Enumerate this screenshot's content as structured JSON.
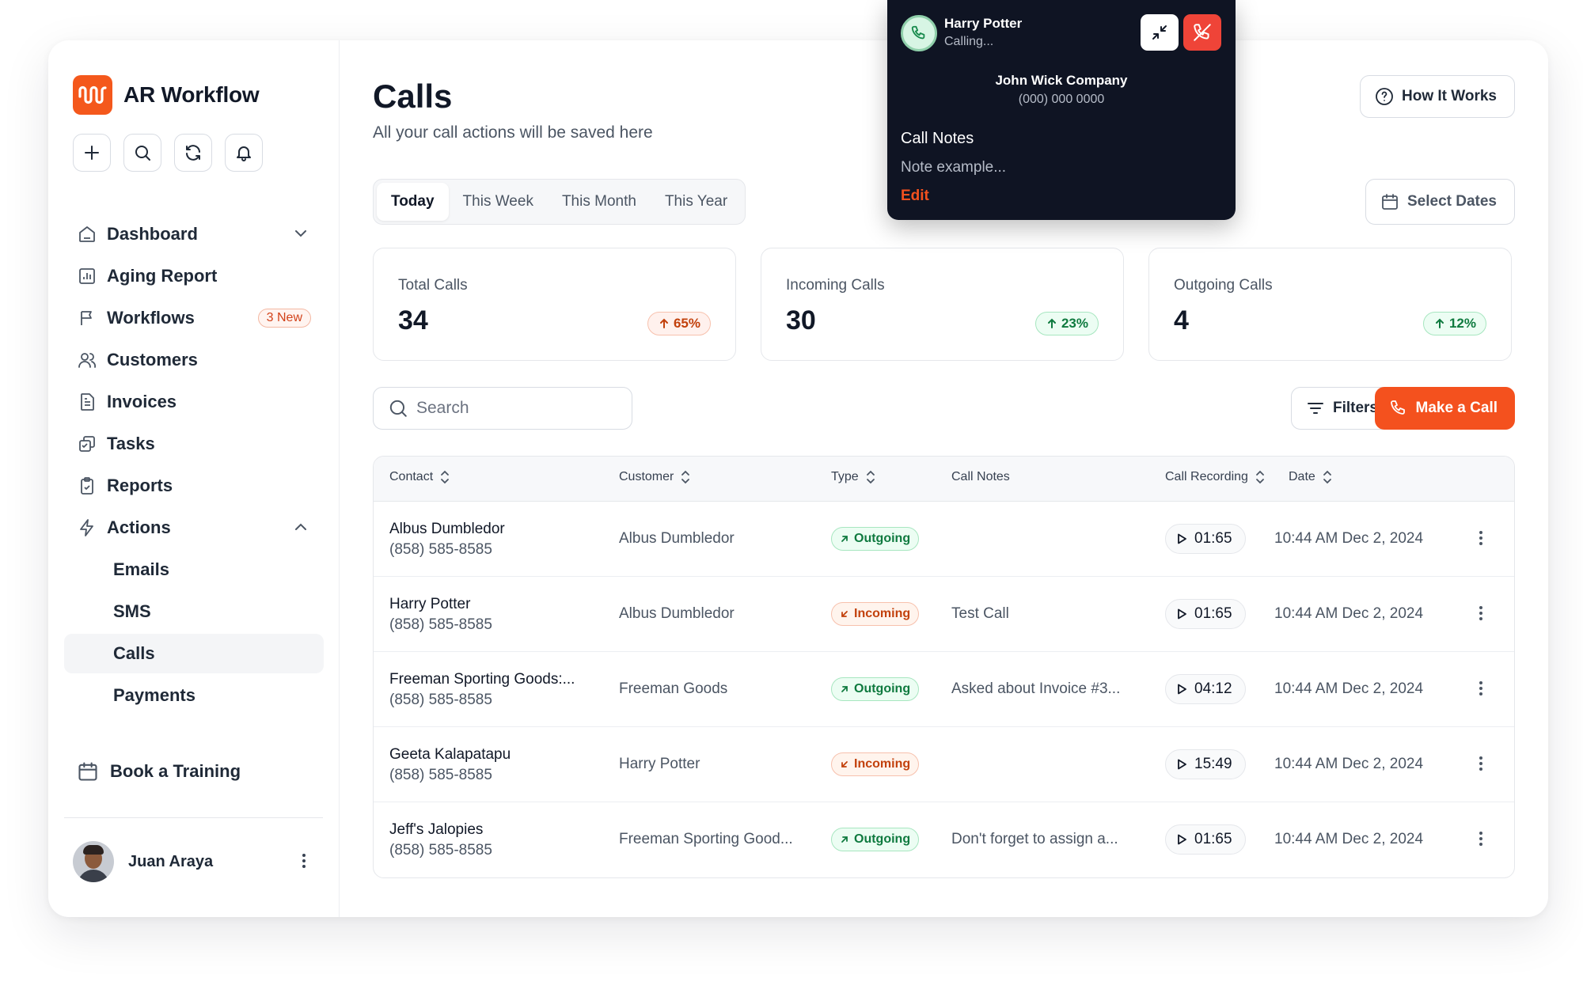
{
  "app": {
    "name": "AR Workflow"
  },
  "colors": {
    "accent": "#f4511e",
    "positive": "#0f7a3f",
    "negative": "#c2410c"
  },
  "toolbar": {
    "icons": [
      "plus-icon",
      "search-icon",
      "refresh-icon",
      "bell-icon"
    ]
  },
  "sidebar": {
    "items": [
      {
        "label": "Dashboard",
        "icon": "home-icon"
      },
      {
        "label": "Aging Report",
        "icon": "chart-icon"
      },
      {
        "label": "Workflows",
        "icon": "flag-icon",
        "badge": "3 New"
      },
      {
        "label": "Customers",
        "icon": "users-icon"
      },
      {
        "label": "Invoices",
        "icon": "document-icon"
      },
      {
        "label": "Tasks",
        "icon": "tasks-icon"
      },
      {
        "label": "Reports",
        "icon": "clipboard-icon"
      },
      {
        "label": "Actions",
        "icon": "lightning-icon"
      }
    ],
    "sub_items": [
      {
        "label": "Emails"
      },
      {
        "label": "SMS"
      },
      {
        "label": "Calls",
        "active": true
      },
      {
        "label": "Payments"
      }
    ],
    "book_training": "Book a Training",
    "user": {
      "name": "Juan Araya"
    }
  },
  "header": {
    "title": "Calls",
    "subtitle": "All your call actions will be saved here",
    "how_it_works": "How It Works",
    "select_dates": "Select Dates"
  },
  "tabs": [
    {
      "label": "Today",
      "active": true
    },
    {
      "label": "This Week"
    },
    {
      "label": "This Month"
    },
    {
      "label": "This Year"
    }
  ],
  "stats": [
    {
      "label": "Total Calls",
      "value": "34",
      "change": "65%",
      "trend": "up"
    },
    {
      "label": "Incoming Calls",
      "value": "30",
      "change": "23%",
      "trend": "up"
    },
    {
      "label": "Outgoing Calls",
      "value": "4",
      "change": "12%",
      "trend": "up"
    }
  ],
  "search": {
    "placeholder": "Search"
  },
  "actions": {
    "filters": "Filters",
    "make_call": "Make a Call"
  },
  "table": {
    "columns": {
      "contact": "Contact",
      "customer": "Customer",
      "type": "Type",
      "notes": "Call Notes",
      "recording": "Call Recording",
      "date": "Date"
    },
    "rows": [
      {
        "contact": "Albus Dumbledor",
        "phone": "(858) 585-8585",
        "customer": "Albus Dumbledor",
        "type": "Outgoing",
        "notes": "",
        "recording": "01:65",
        "date": "10:44 AM Dec 2, 2024"
      },
      {
        "contact": "Harry Potter",
        "phone": "(858) 585-8585",
        "customer": "Albus Dumbledor",
        "type": "Incoming",
        "notes": "Test Call",
        "recording": "01:65",
        "date": "10:44 AM Dec 2, 2024"
      },
      {
        "contact": "Freeman Sporting Goods:...",
        "phone": "(858) 585-8585",
        "customer": "Freeman Goods",
        "type": "Outgoing",
        "notes": "Asked about Invoice #3...",
        "recording": "04:12",
        "date": "10:44 AM Dec 2, 2024"
      },
      {
        "contact": "Geeta Kalapatapu",
        "phone": "(858) 585-8585",
        "customer": "Harry Potter",
        "type": "Incoming",
        "notes": "",
        "recording": "15:49",
        "date": "10:44 AM Dec 2, 2024"
      },
      {
        "contact": "Jeff's Jalopies",
        "phone": "(858) 585-8585",
        "customer": "Freeman Sporting Good...",
        "type": "Outgoing",
        "notes": "Don't forget to assign a...",
        "recording": "01:65",
        "date": "10:44 AM Dec 2, 2024"
      }
    ]
  },
  "call_popup": {
    "caller": "Harry Potter",
    "status": "Calling...",
    "company": "John Wick Company",
    "phone": "(000) 000 0000",
    "notes_title": "Call Notes",
    "note": "Note example...",
    "edit": "Edit"
  }
}
